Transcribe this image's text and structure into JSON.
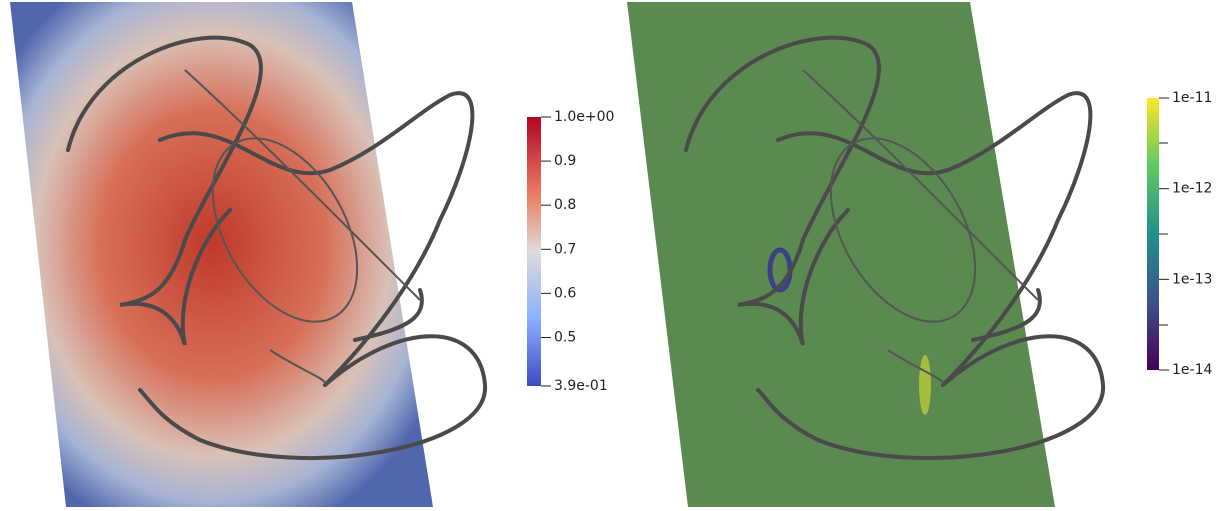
{
  "panels": [
    {
      "colorbar": {
        "range": [
          0.39,
          1.0
        ],
        "scale": "linear",
        "ticks": [
          {
            "value": 1.0,
            "label": "1.0e+00"
          },
          0.9,
          0.8,
          0.7,
          0.6,
          0.5,
          {
            "value": 0.39,
            "label": "3.9e-01"
          }
        ]
      }
    },
    {
      "colorbar": {
        "range": [
          1e-14,
          1e-11
        ],
        "scale": "log",
        "ticks": [
          {
            "value": 1e-11,
            "label": "1e-11"
          },
          {
            "value": 1e-12,
            "label": "1e-12"
          },
          {
            "value": 1e-13,
            "label": "1e-13"
          },
          {
            "value": 1e-14,
            "label": "1e-14"
          }
        ]
      }
    }
  ]
}
